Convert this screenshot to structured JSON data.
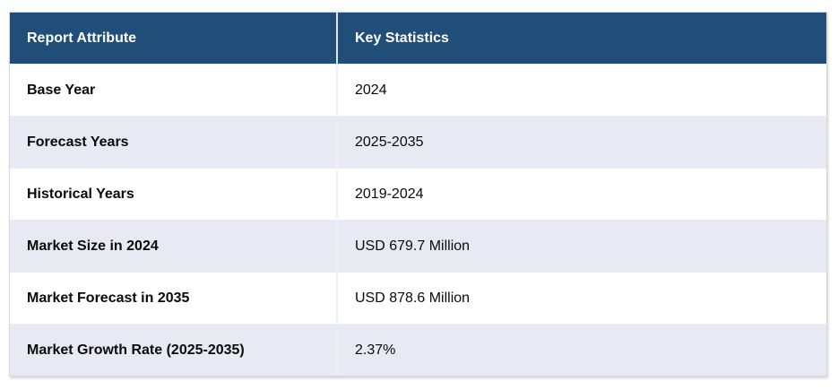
{
  "chart_data": {
    "type": "table",
    "title": "",
    "columns": [
      "Report Attribute",
      "Key Statistics"
    ],
    "rows": [
      {
        "attribute": "Base Year",
        "value": "2024"
      },
      {
        "attribute": "Forecast Years",
        "value": "2025-2035"
      },
      {
        "attribute": "Historical Years",
        "value": "2019-2024"
      },
      {
        "attribute": "Market Size in 2024",
        "value": "USD 679.7 Million"
      },
      {
        "attribute": "Market Forecast in 2035",
        "value": "USD 878.6 Million"
      },
      {
        "attribute": "Market Growth Rate (2025-2035)",
        "value": "2.37%"
      }
    ]
  },
  "table": {
    "columns": [
      "Report Attribute",
      "Key Statistics"
    ],
    "rows": [
      {
        "attribute": "Base Year",
        "value": "2024"
      },
      {
        "attribute": "Forecast Years",
        "value": "2025-2035"
      },
      {
        "attribute": "Historical Years",
        "value": "2019-2024"
      },
      {
        "attribute": "Market Size in 2024",
        "value": "USD 679.7 Million"
      },
      {
        "attribute": "Market Forecast in 2035",
        "value": "USD 878.6 Million"
      },
      {
        "attribute": "Market Growth Rate (2025-2035)",
        "value": "2.37%"
      }
    ],
    "colors": {
      "header_bg": "#214e78",
      "header_fg": "#ffffff",
      "row_bg": "#ffffff",
      "row_alt_bg": "#e8e9f3",
      "outer_border": "#d9d9d9"
    }
  }
}
